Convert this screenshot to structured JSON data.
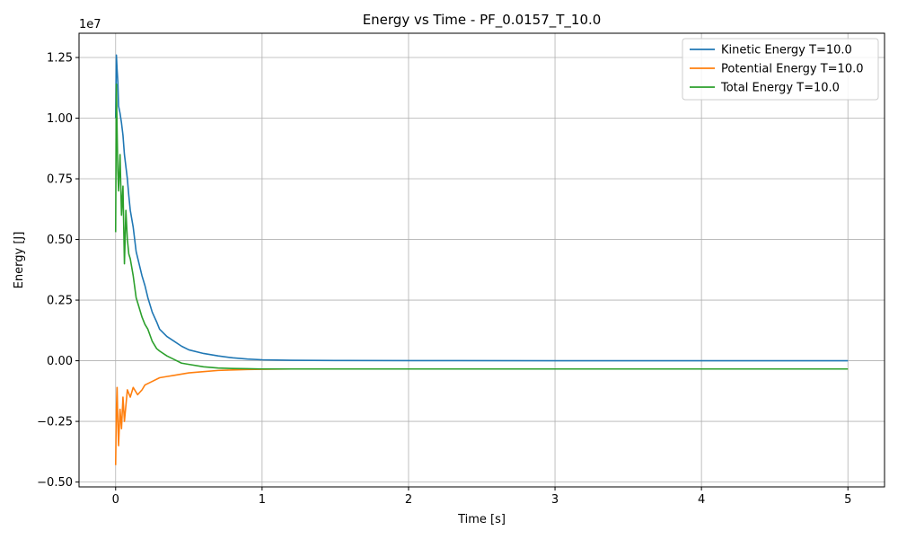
{
  "chart_data": {
    "type": "line",
    "title": "Energy vs Time - PF_0.0157_T_10.0",
    "xlabel": "Time [s]",
    "ylabel": "Energy [J]",
    "y_multiplier_label": "1e7",
    "xlim": [
      -0.25,
      5.25
    ],
    "ylim": [
      -0.52,
      1.35
    ],
    "x_ticks": [
      0,
      1,
      2,
      3,
      4,
      5
    ],
    "x_tick_labels": [
      "0",
      "1",
      "2",
      "3",
      "4",
      "5"
    ],
    "y_ticks": [
      -0.5,
      -0.25,
      0.0,
      0.25,
      0.5,
      0.75,
      1.0,
      1.25
    ],
    "y_tick_labels": [
      "−0.50",
      "−0.25",
      "0.00",
      "0.25",
      "0.50",
      "0.75",
      "1.00",
      "1.25"
    ],
    "grid": true,
    "legend_position": "top-right",
    "series": [
      {
        "name": "Kinetic Energy T=10.0",
        "color": "#1f77b4",
        "x": [
          0.0,
          0.005,
          0.01,
          0.015,
          0.02,
          0.03,
          0.04,
          0.05,
          0.06,
          0.07,
          0.08,
          0.09,
          0.1,
          0.12,
          0.14,
          0.16,
          0.18,
          0.2,
          0.22,
          0.25,
          0.28,
          0.3,
          0.35,
          0.4,
          0.45,
          0.5,
          0.6,
          0.7,
          0.8,
          0.9,
          1.0,
          1.2,
          1.5,
          2.0,
          3.0,
          4.0,
          5.0
        ],
        "y": [
          1.0,
          1.26,
          1.2,
          1.15,
          1.05,
          1.02,
          0.98,
          0.93,
          0.85,
          0.8,
          0.75,
          0.68,
          0.62,
          0.55,
          0.45,
          0.4,
          0.35,
          0.31,
          0.26,
          0.2,
          0.16,
          0.13,
          0.1,
          0.08,
          0.06,
          0.045,
          0.03,
          0.02,
          0.012,
          0.007,
          0.004,
          0.002,
          0.001,
          0.0005,
          0.0002,
          0.0001,
          0.0001
        ]
      },
      {
        "name": "Potential Energy T=10.0",
        "color": "#ff7f0e",
        "x": [
          0.0,
          0.005,
          0.01,
          0.015,
          0.02,
          0.03,
          0.04,
          0.05,
          0.06,
          0.08,
          0.1,
          0.12,
          0.15,
          0.18,
          0.2,
          0.25,
          0.3,
          0.35,
          0.4,
          0.45,
          0.5,
          0.6,
          0.7,
          0.8,
          0.9,
          1.0,
          1.2,
          1.5,
          2.0,
          3.0,
          4.0,
          5.0
        ],
        "y": [
          -0.43,
          -0.2,
          -0.11,
          -0.25,
          -0.35,
          -0.2,
          -0.28,
          -0.15,
          -0.25,
          -0.12,
          -0.15,
          -0.11,
          -0.14,
          -0.12,
          -0.1,
          -0.085,
          -0.07,
          -0.065,
          -0.06,
          -0.055,
          -0.05,
          -0.045,
          -0.04,
          -0.038,
          -0.036,
          -0.035,
          -0.034,
          -0.034,
          -0.034,
          -0.034,
          -0.034,
          -0.034
        ]
      },
      {
        "name": "Total Energy T=10.0",
        "color": "#2ca02c",
        "x": [
          0.0,
          0.005,
          0.01,
          0.015,
          0.02,
          0.03,
          0.04,
          0.05,
          0.06,
          0.07,
          0.08,
          0.09,
          0.1,
          0.12,
          0.14,
          0.16,
          0.18,
          0.2,
          0.22,
          0.25,
          0.28,
          0.3,
          0.35,
          0.4,
          0.45,
          0.5,
          0.6,
          0.7,
          0.8,
          0.9,
          1.0,
          1.2,
          1.5,
          2.0,
          3.0,
          4.0,
          5.0
        ],
        "y": [
          0.53,
          1.14,
          0.95,
          0.78,
          0.7,
          0.85,
          0.6,
          0.72,
          0.4,
          0.62,
          0.5,
          0.44,
          0.42,
          0.35,
          0.26,
          0.22,
          0.18,
          0.15,
          0.13,
          0.08,
          0.05,
          0.04,
          0.02,
          0.005,
          -0.01,
          -0.015,
          -0.025,
          -0.03,
          -0.032,
          -0.033,
          -0.034,
          -0.034,
          -0.034,
          -0.034,
          -0.034,
          -0.034,
          -0.034
        ]
      }
    ]
  }
}
